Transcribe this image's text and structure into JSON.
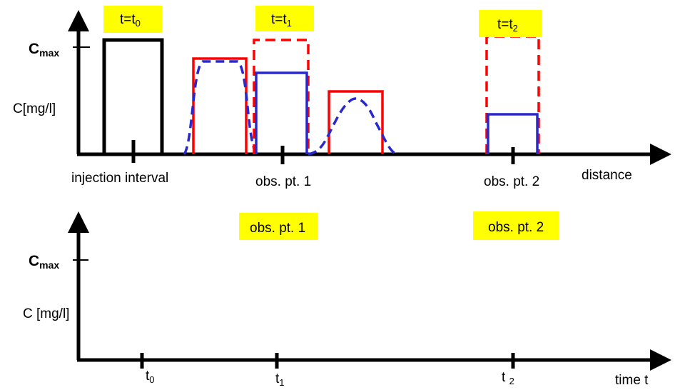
{
  "top_panel": {
    "y_axis_max_label": {
      "main": "C",
      "sub": "max"
    },
    "y_axis_label": "C[mg/l]",
    "x_axis_label": "distance",
    "tick_labels": {
      "injection": "injection interval",
      "obs1": "obs. pt. 1",
      "obs2": "obs. pt. 2"
    },
    "time_tags": [
      {
        "main": "t=t",
        "sub": "0"
      },
      {
        "main": "t=t",
        "sub": "1"
      },
      {
        "main": "t=t",
        "sub": "2"
      }
    ]
  },
  "bottom_panel": {
    "y_axis_max_label": {
      "main": "C",
      "sub": "max"
    },
    "y_axis_label": "C [mg/l]",
    "x_axis_label": "time t",
    "obs_tags": [
      "obs. pt. 1",
      "obs. pt. 2"
    ],
    "time_ticks": [
      {
        "main": "t",
        "sub": "0"
      },
      {
        "main": "t",
        "sub": "1"
      },
      {
        "main": "t ",
        "sub": "2"
      }
    ]
  },
  "colors": {
    "axis": "#000000",
    "initial_pulse": "#000000",
    "advection": "#ff0000",
    "dispersion": "#0000cc",
    "highlight": "#ffff00"
  }
}
